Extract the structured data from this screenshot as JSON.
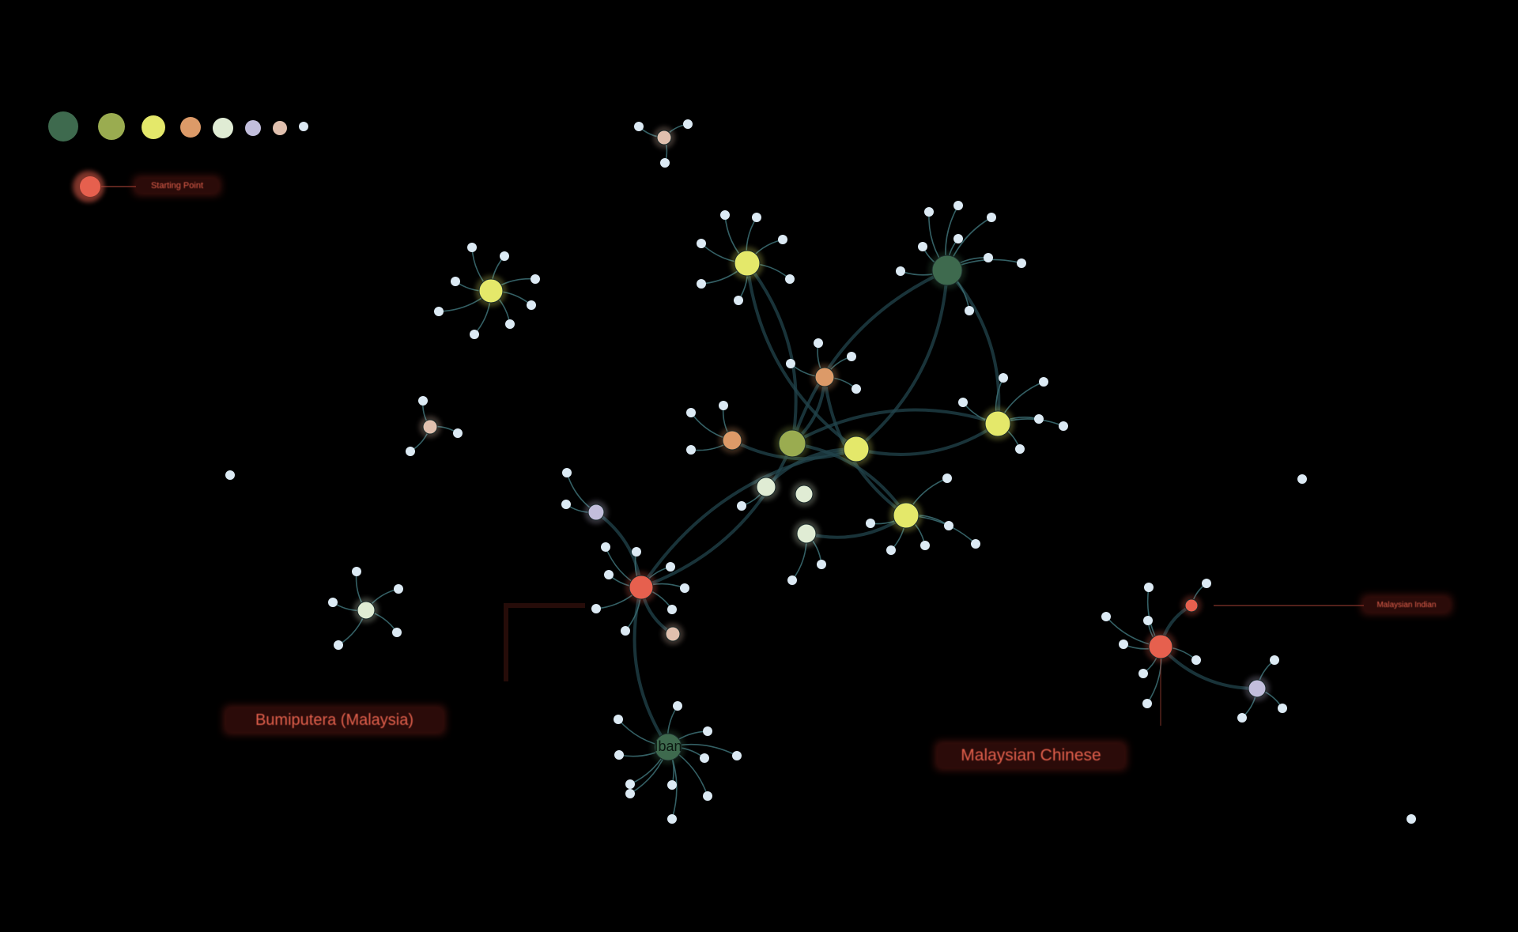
{
  "legend": {
    "colors": [
      "#3e6a4e",
      "#9aac50",
      "#e4e86a",
      "#dc9a68",
      "#e0ecd4",
      "#c2bedc",
      "#e0c0ae",
      "#dce8f2"
    ]
  },
  "start_indicator": {
    "label": "Starting Point",
    "color": "#e6604e"
  },
  "region_labels": {
    "bumiputera": "Bumiputera (Malaysia)",
    "chinese": "Malaysian Chinese",
    "indian": "Malaysian Indian"
  },
  "node_text": "Iban",
  "colors": {
    "background": "#000000",
    "edge": "#22444c",
    "leaf": "#dceaf4",
    "accent_red": "#e6604e",
    "label_text": "#e3604c"
  }
}
